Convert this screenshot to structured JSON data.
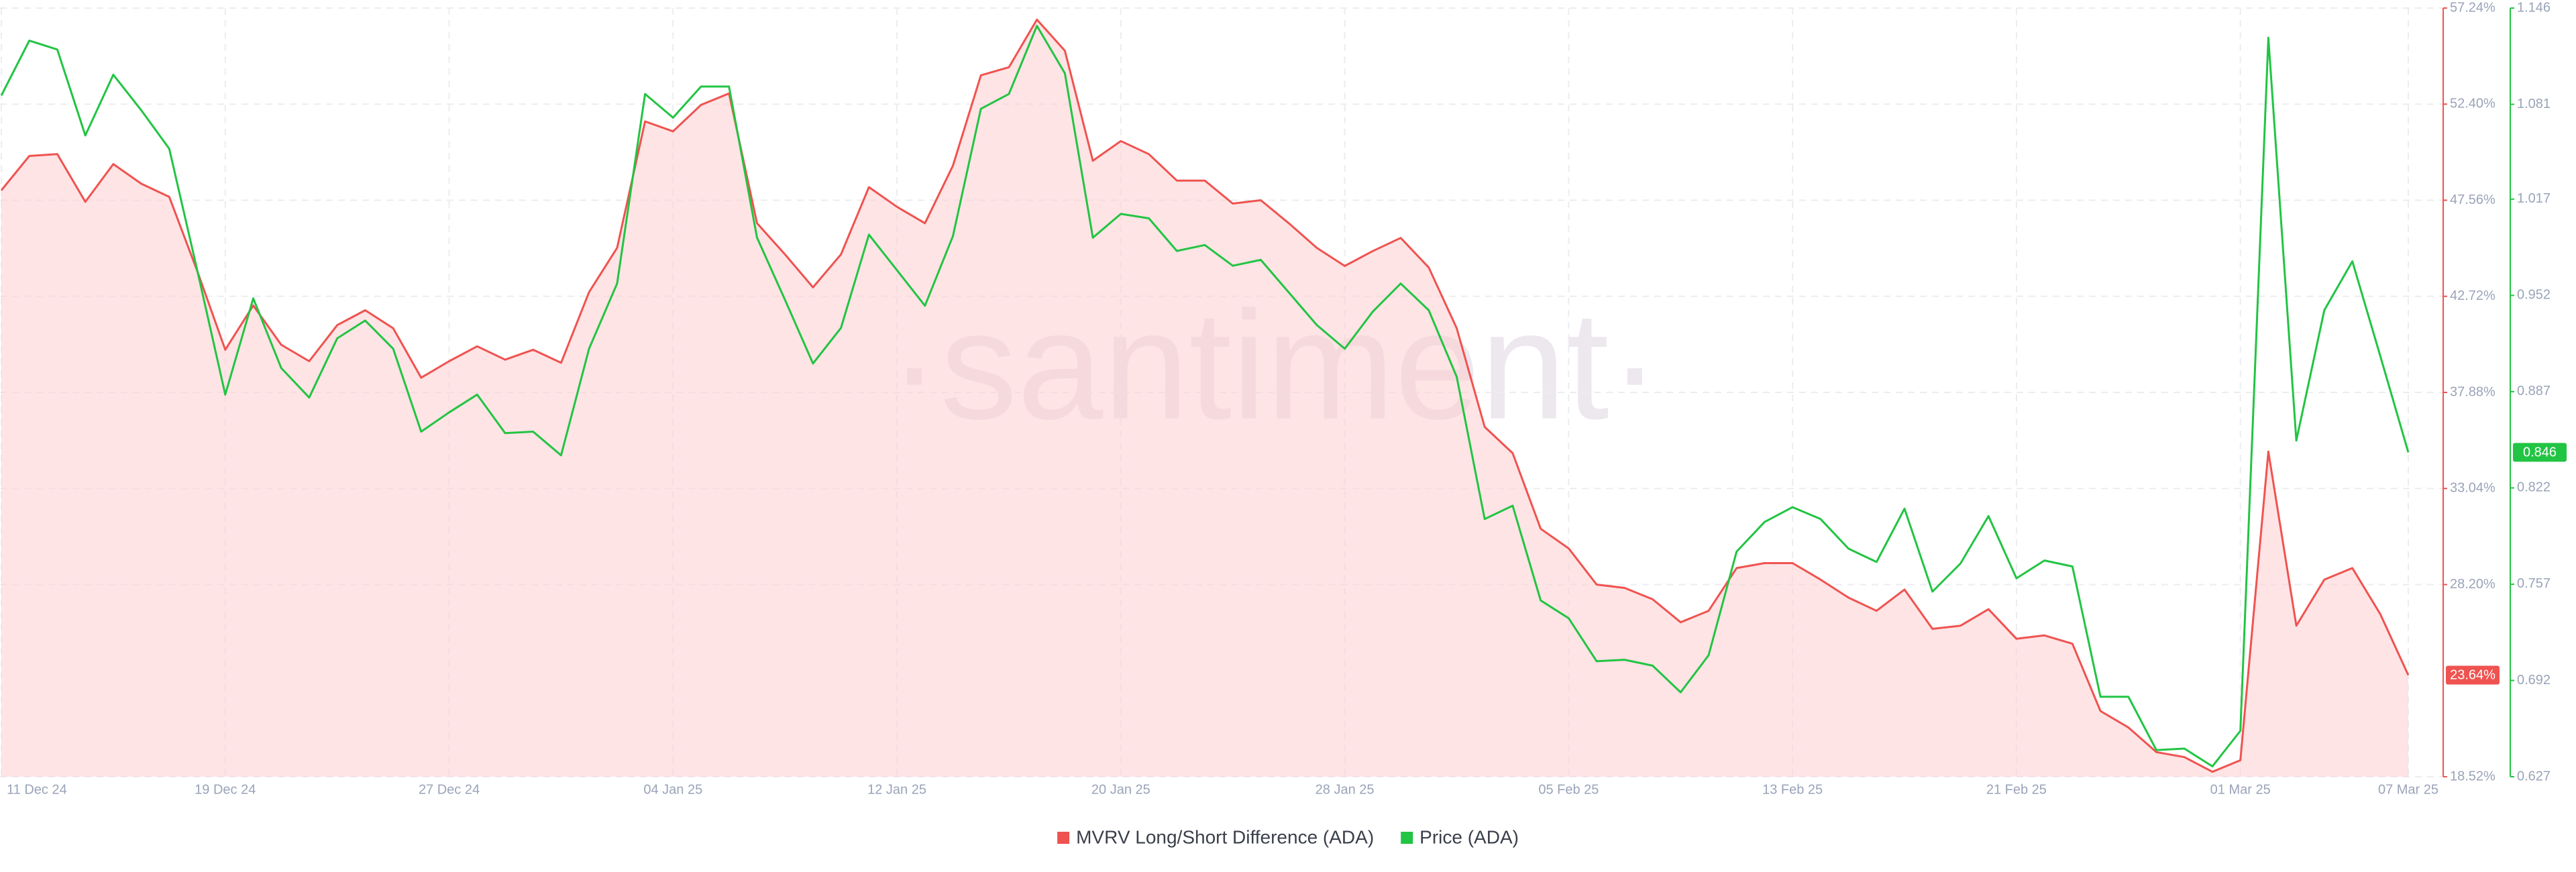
{
  "chart_data": {
    "type": "line",
    "watermark": "·santiment·",
    "categories": [
      "11 Dec 24",
      null,
      null,
      null,
      null,
      null,
      null,
      null,
      "19 Dec 24",
      null,
      null,
      null,
      null,
      null,
      null,
      null,
      "27 Dec 24",
      null,
      null,
      null,
      null,
      null,
      null,
      null,
      "04 Jan 25",
      null,
      null,
      null,
      null,
      null,
      null,
      null,
      "12 Jan 25",
      null,
      null,
      null,
      null,
      null,
      null,
      null,
      "20 Jan 25",
      null,
      null,
      null,
      null,
      null,
      null,
      null,
      "28 Jan 25",
      null,
      null,
      null,
      null,
      null,
      null,
      null,
      "05 Feb 25",
      null,
      null,
      null,
      null,
      null,
      null,
      null,
      "13 Feb 25",
      null,
      null,
      null,
      null,
      null,
      null,
      null,
      "21 Feb 25",
      null,
      null,
      null,
      null,
      null,
      null,
      null,
      "01 Mar 25",
      null,
      null,
      null,
      null,
      null,
      "07 Mar 25"
    ],
    "series": [
      {
        "name": "MVRV Long/Short Difference (ADA)",
        "color": "#ef5350",
        "area": true,
        "axis": "y",
        "values": [
          48.06,
          49.79,
          49.88,
          47.48,
          49.38,
          48.39,
          47.73,
          44.0,
          40.03,
          42.26,
          40.28,
          39.45,
          41.27,
          42.02,
          41.11,
          38.62,
          39.45,
          40.2,
          39.53,
          40.03,
          39.37,
          42.93,
          45.16,
          51.53,
          51.03,
          52.36,
          52.94,
          46.4,
          44.83,
          43.17,
          44.83,
          48.22,
          47.23,
          46.4,
          49.3,
          53.85,
          54.26,
          56.66,
          55.09,
          49.55,
          50.54,
          49.88,
          48.55,
          48.55,
          47.39,
          47.56,
          46.4,
          45.16,
          44.25,
          45.0,
          45.66,
          44.17,
          41.11,
          36.14,
          34.82,
          31.01,
          30.02,
          28.2,
          28.03,
          27.46,
          26.3,
          26.88,
          29.03,
          29.28,
          29.28,
          28.45,
          27.54,
          26.88,
          27.95,
          25.97,
          26.13,
          26.96,
          25.47,
          25.64,
          25.22,
          21.83,
          21.0,
          19.76,
          19.51,
          18.77,
          19.35,
          34.9,
          26.13,
          28.45,
          29.03,
          26.71,
          23.64
        ],
        "value_labels": [
          null,
          null,
          null,
          null,
          null,
          null,
          null,
          null,
          null,
          null,
          null,
          null,
          null,
          null,
          null,
          null,
          null,
          null,
          null,
          null,
          null,
          null,
          null,
          null,
          null,
          null,
          null,
          null,
          null,
          null,
          null,
          null,
          null,
          null,
          null,
          null,
          null,
          null,
          null,
          null,
          null,
          null,
          null,
          null,
          null,
          null,
          null,
          null,
          null,
          null,
          null,
          null,
          null,
          null,
          null,
          null,
          null,
          null,
          null,
          null,
          null,
          null,
          null,
          null,
          null,
          null,
          null,
          null,
          null,
          null,
          null,
          null,
          null,
          null,
          null,
          null,
          null,
          null,
          null,
          null,
          null,
          null,
          null,
          null,
          null,
          null,
          "23.64%"
        ]
      },
      {
        "name": "Price (ADA)",
        "color": "#22c443",
        "area": false,
        "axis": "y2",
        "values": [
          1.087,
          1.124,
          1.118,
          1.06,
          1.101,
          1.077,
          1.051,
          0.969,
          0.885,
          0.95,
          0.903,
          0.883,
          0.923,
          0.935,
          0.916,
          0.86,
          0.873,
          0.885,
          0.859,
          0.86,
          0.844,
          0.916,
          0.96,
          1.088,
          1.072,
          1.093,
          1.093,
          0.991,
          0.949,
          0.906,
          0.93,
          0.993,
          0.969,
          0.945,
          0.992,
          1.078,
          1.088,
          1.134,
          1.102,
          0.991,
          1.007,
          1.004,
          0.982,
          0.986,
          0.972,
          0.976,
          0.954,
          0.932,
          0.916,
          0.941,
          0.96,
          0.942,
          0.897,
          0.801,
          0.81,
          0.746,
          0.734,
          0.705,
          0.706,
          0.702,
          0.684,
          0.709,
          0.779,
          0.799,
          0.809,
          0.801,
          0.781,
          0.772,
          0.808,
          0.752,
          0.771,
          0.803,
          0.761,
          0.773,
          0.769,
          0.681,
          0.681,
          0.645,
          0.646,
          0.634,
          0.658,
          1.126,
          0.854,
          0.942,
          0.975,
          0.911,
          0.846
        ],
        "value_labels": [
          null,
          null,
          null,
          null,
          null,
          null,
          null,
          null,
          null,
          null,
          null,
          null,
          null,
          null,
          null,
          null,
          null,
          null,
          null,
          null,
          null,
          null,
          null,
          null,
          null,
          null,
          null,
          null,
          null,
          null,
          null,
          null,
          null,
          null,
          null,
          null,
          null,
          null,
          null,
          null,
          null,
          null,
          null,
          null,
          null,
          null,
          null,
          null,
          null,
          null,
          null,
          null,
          null,
          null,
          null,
          null,
          null,
          null,
          null,
          null,
          null,
          null,
          null,
          null,
          null,
          null,
          null,
          null,
          null,
          null,
          null,
          null,
          null,
          null,
          null,
          null,
          null,
          null,
          null,
          null,
          null,
          null,
          null,
          null,
          null,
          null,
          "0.846"
        ]
      }
    ],
    "ylim": [
      18.52,
      57.24
    ],
    "yticks": [
      {
        "value": 57.24,
        "label": "57.24%"
      },
      {
        "value": 52.4,
        "label": "52.40%"
      },
      {
        "value": 47.56,
        "label": "47.56%"
      },
      {
        "value": 42.72,
        "label": "42.72%"
      },
      {
        "value": 37.88,
        "label": "37.88%"
      },
      {
        "value": 33.04,
        "label": "33.04%"
      },
      {
        "value": 28.2,
        "label": "28.20%"
      },
      {
        "value": 18.52,
        "label": "18.52%"
      }
    ],
    "y2lim": [
      0.627,
      1.146
    ],
    "y2ticks": [
      1.146,
      1.081,
      1.017,
      0.952,
      0.887,
      0.822,
      0.757,
      0.692,
      0.627
    ],
    "grid": true,
    "legend": "bottom"
  }
}
